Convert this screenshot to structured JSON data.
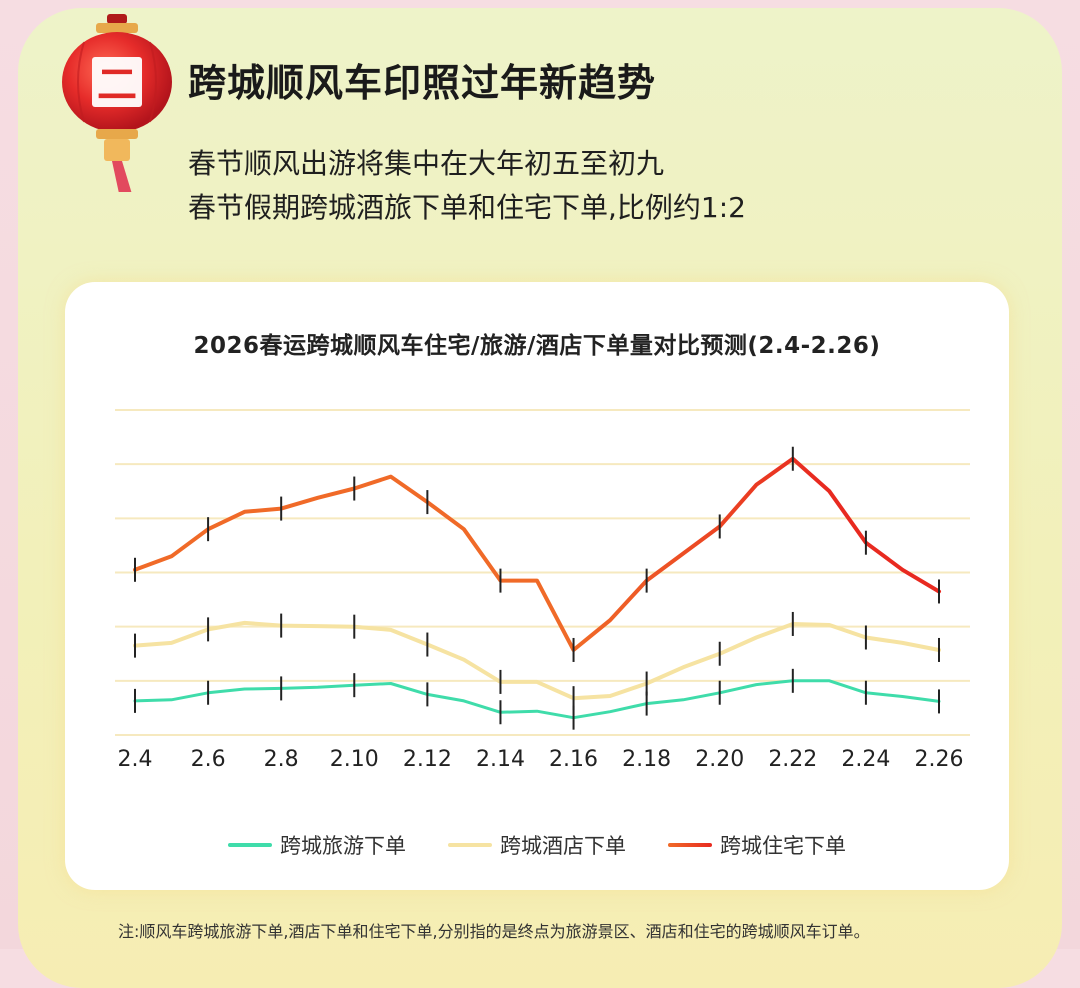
{
  "header": {
    "title": "跨城顺风车印照过年新趋势",
    "subtitle_lines": [
      "春节顺风出游将集中在大年初五至初九",
      "春节假期跨城酒旅下单和住宅下单,比例约1:2"
    ]
  },
  "icons": {
    "lantern": "red-lantern-icon",
    "lantern_badge": "二"
  },
  "colors": {
    "tourism": "#3fdcaa",
    "hotel": "#f6e3a2",
    "home_start": "#f06a28",
    "home_end": "#e82a20",
    "grid": "#f6e9bf"
  },
  "chart_data": {
    "type": "line",
    "title": "2026春运跨城顺风车住宅/旅游/酒店下单量对比预测(2.4-2.26)",
    "x": [
      "2.4",
      "2.5",
      "2.6",
      "2.7",
      "2.8",
      "2.9",
      "2.10",
      "2.11",
      "2.12",
      "2.13",
      "2.14",
      "2.15",
      "2.16",
      "2.17",
      "2.18",
      "2.19",
      "2.20",
      "2.21",
      "2.22",
      "2.23",
      "2.24",
      "2.25",
      "2.26"
    ],
    "x_tick_labels": [
      "2.4",
      "2.6",
      "2.8",
      "2.10",
      "2.12",
      "2.14",
      "2.16",
      "2.18",
      "2.20",
      "2.22",
      "2.24",
      "2.26"
    ],
    "gridlines": 6,
    "ylim": [
      0,
      6
    ],
    "y_axis_labels_shown": false,
    "grid": true,
    "legend_position": "bottom-center",
    "series": [
      {
        "name": "跨城旅游下单",
        "values": [
          0.63,
          0.65,
          0.78,
          0.85,
          0.86,
          0.88,
          0.92,
          0.95,
          0.75,
          0.63,
          0.42,
          0.44,
          0.32,
          0.43,
          0.58,
          0.65,
          0.78,
          0.93,
          1.0,
          1.0,
          0.78,
          0.71,
          0.62
        ]
      },
      {
        "name": "跨城酒店下单",
        "values": [
          1.65,
          1.7,
          1.95,
          2.07,
          2.02,
          2.01,
          2.0,
          1.94,
          1.67,
          1.39,
          0.98,
          0.98,
          0.68,
          0.72,
          0.95,
          1.25,
          1.5,
          1.8,
          2.05,
          2.03,
          1.8,
          1.7,
          1.57
        ]
      },
      {
        "name": "跨城住宅下单",
        "values": [
          3.05,
          3.3,
          3.8,
          4.12,
          4.18,
          4.38,
          4.55,
          4.77,
          4.3,
          3.8,
          2.85,
          2.85,
          1.57,
          2.12,
          2.85,
          3.35,
          3.85,
          4.62,
          5.1,
          4.5,
          3.55,
          3.05,
          2.65
        ]
      }
    ]
  },
  "footnote": "注:顺风车跨城旅游下单,酒店下单和住宅下单,分别指的是终点为旅游景区、酒店和住宅的跨城顺风车订单。"
}
